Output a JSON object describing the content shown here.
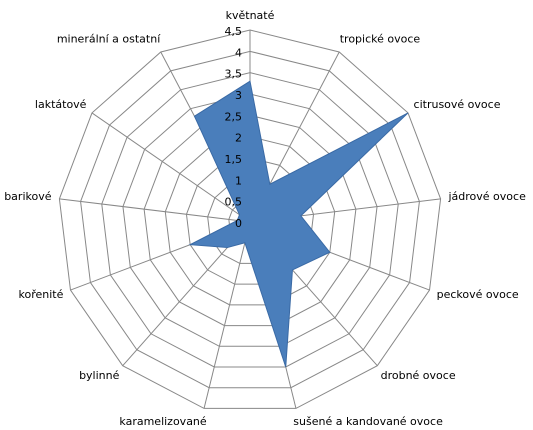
{
  "chart_data": {
    "type": "radar",
    "categories": [
      "květnaté",
      "tropické ovoce",
      "citrusové ovoce",
      "jádrové ovoce",
      "peckové ovoce",
      "drobné ovoce",
      "sušené a kandované ovoce",
      "karamelizované",
      "bylinné",
      "kořenité",
      "barikové",
      "laktátové",
      "minerální a ostatní"
    ],
    "values": [
      3.3,
      1.0,
      4.5,
      1.2,
      2.0,
      1.5,
      3.5,
      0.5,
      0.8,
      1.5,
      0.3,
      0.3,
      2.8
    ],
    "color": "#4a7ebb",
    "ylim": [
      0,
      4.5
    ],
    "yticks": [
      0,
      {
        "value": 0.5,
        "label": "0,5"
      },
      1,
      {
        "value": 1.5,
        "label": "1,5"
      },
      2,
      {
        "value": 2.5,
        "label": "2,5"
      },
      3,
      {
        "value": 3.5,
        "label": "3,5"
      },
      4,
      {
        "value": 4.5,
        "label": "4,5"
      }
    ],
    "grid": true
  }
}
